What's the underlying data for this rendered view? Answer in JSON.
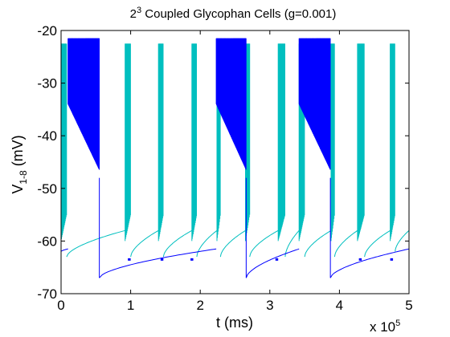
{
  "chart_data": {
    "type": "line",
    "title_base": "2",
    "title_exp": "3",
    "title_rest": " Coupled Glycophan Cells (g=0.001)",
    "xlabel": "t (ms)",
    "ylabel_main": "V",
    "ylabel_sub": "1-8",
    "ylabel_unit": " (mV)",
    "x_multiplier_label": "x 10",
    "x_multiplier_exp": "5",
    "xlim": [
      0,
      5
    ],
    "ylim": [
      -70,
      -20
    ],
    "xticks": [
      "0",
      "1",
      "2",
      "3",
      "4",
      "5"
    ],
    "yticks": [
      "-20",
      "-30",
      "-40",
      "-50",
      "-60",
      "-70"
    ],
    "colors": {
      "blue": "#0000ff",
      "cyan": "#00bfbf",
      "red": "#ff0000",
      "green": "#008000"
    },
    "blue_bursts": [
      [
        0.1,
        0.55
      ],
      [
        2.23,
        2.66
      ],
      [
        3.42,
        3.87
      ]
    ],
    "cyan_bursts": [
      [
        0.0,
        0.08
      ],
      [
        0.92,
        1.0
      ],
      [
        1.4,
        1.47
      ],
      [
        1.88,
        1.95
      ],
      [
        2.24,
        2.29
      ],
      [
        2.65,
        2.71
      ],
      [
        3.12,
        3.22
      ],
      [
        3.42,
        3.5
      ],
      [
        3.88,
        3.93
      ],
      [
        4.26,
        4.36
      ],
      [
        4.73,
        4.8
      ]
    ],
    "baseline_min_mV": -67,
    "plateau_mV": -63.5
  }
}
